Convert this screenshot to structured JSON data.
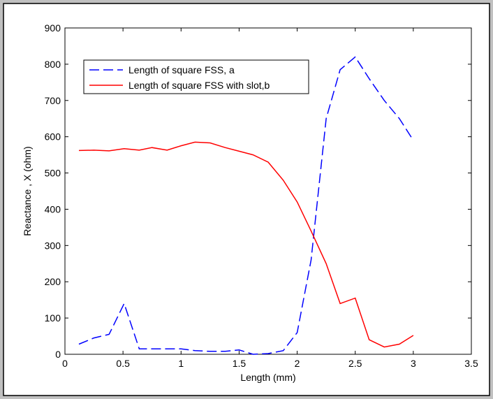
{
  "chart_data": {
    "type": "line",
    "xlabel": "Length (mm)",
    "ylabel": "Reactance , X (ohm)",
    "xlim": [
      0,
      3.5
    ],
    "ylim": [
      0,
      900
    ],
    "xticks": [
      0,
      0.5,
      1,
      1.5,
      2,
      2.5,
      3,
      3.5
    ],
    "yticks": [
      0,
      100,
      200,
      300,
      400,
      500,
      600,
      700,
      800,
      900
    ],
    "xtick_labels": [
      "0",
      "0.5",
      "1",
      "1.5",
      "2",
      "2.5",
      "3",
      "3.5"
    ],
    "ytick_labels": [
      "0",
      "100",
      "200",
      "300",
      "400",
      "500",
      "600",
      "700",
      "800",
      "900"
    ],
    "grid": false,
    "legend_position": "top-left",
    "series": [
      {
        "name": "Length of square FSS, a",
        "color": "#0000ff",
        "style": "dashed",
        "x": [
          0.12,
          0.25,
          0.38,
          0.51,
          0.64,
          0.75,
          0.88,
          1.0,
          1.12,
          1.25,
          1.38,
          1.5,
          1.62,
          1.75,
          1.88,
          2.0,
          2.12,
          2.25,
          2.37,
          2.5,
          2.62,
          2.75,
          2.88,
          3.0
        ],
        "y": [
          28,
          45,
          55,
          140,
          15,
          15,
          15,
          15,
          10,
          8,
          8,
          12,
          0,
          2,
          10,
          60,
          260,
          650,
          785,
          820,
          760,
          700,
          650,
          590
        ]
      },
      {
        "name": "Length of square FSS with slot,b",
        "color": "#ff0000",
        "style": "solid",
        "x": [
          0.12,
          0.25,
          0.38,
          0.51,
          0.64,
          0.75,
          0.88,
          1.0,
          1.12,
          1.25,
          1.38,
          1.5,
          1.62,
          1.75,
          1.88,
          2.0,
          2.12,
          2.25,
          2.37,
          2.5,
          2.62,
          2.75,
          2.88,
          3.0
        ],
        "y": [
          562,
          563,
          561,
          567,
          563,
          570,
          563,
          575,
          585,
          583,
          570,
          560,
          550,
          530,
          480,
          420,
          340,
          250,
          140,
          155,
          40,
          20,
          28,
          52
        ]
      }
    ]
  }
}
